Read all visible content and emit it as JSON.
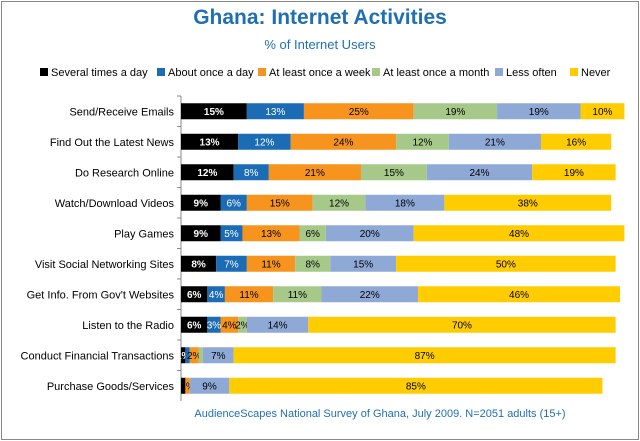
{
  "chart_data": {
    "type": "bar",
    "orientation": "horizontal",
    "stacked": true,
    "title": "Ghana: Internet Activities",
    "subtitle": "% of Internet Users",
    "footnote": "AudienceScapes National Survey of Ghana, July 2009. N=2051 adults (15+)",
    "legend_position": "top",
    "categories": [
      "Send/Receive Emails",
      "Find Out the Latest News",
      "Do Research Online",
      "Watch/Download Videos",
      "Play Games",
      "Visit Social Networking Sites",
      "Get Info. From Gov't Websites",
      "Listen to the Radio",
      "Conduct Financial Transactions",
      "Purchase Goods/Services"
    ],
    "series": [
      {
        "name": "Several times a day",
        "color": "#000000",
        "label_color": "#ffffff",
        "values": [
          15,
          13,
          12,
          9,
          9,
          8,
          6,
          6,
          1,
          1
        ]
      },
      {
        "name": "About once a day",
        "color": "#1b6cb4",
        "label_color": "#ffffff",
        "values": [
          13,
          12,
          8,
          6,
          5,
          7,
          4,
          3,
          1,
          0
        ]
      },
      {
        "name": "At least once a week",
        "color": "#f7941d",
        "label_color": "#000000",
        "values": [
          25,
          24,
          21,
          15,
          13,
          11,
          11,
          4,
          2,
          1
        ]
      },
      {
        "name": "At least once a month",
        "color": "#a6c98a",
        "label_color": "#000000",
        "values": [
          19,
          12,
          15,
          12,
          6,
          8,
          11,
          2,
          1,
          0
        ]
      },
      {
        "name": "Less often",
        "color": "#8fa9d6",
        "label_color": "#000000",
        "values": [
          19,
          21,
          24,
          18,
          20,
          15,
          22,
          14,
          7,
          9
        ]
      },
      {
        "name": "Never",
        "color": "#ffcc00",
        "label_color": "#000000",
        "values": [
          10,
          16,
          19,
          38,
          48,
          50,
          46,
          70,
          87,
          85
        ]
      }
    ],
    "data_labels": [
      [
        "15%",
        "13%",
        "25%",
        "19%",
        "19%",
        "10%"
      ],
      [
        "13%",
        "12%",
        "24%",
        "12%",
        "21%",
        "16%"
      ],
      [
        "12%",
        "8%",
        "21%",
        "15%",
        "24%",
        "19%"
      ],
      [
        "9%",
        "6%",
        "15%",
        "12%",
        "18%",
        "38%"
      ],
      [
        "9%",
        "5%",
        "13%",
        "6%",
        "20%",
        "48%"
      ],
      [
        "8%",
        "7%",
        "11%",
        "8%",
        "15%",
        "50%"
      ],
      [
        "6%",
        "4%",
        "11%",
        "11%",
        "22%",
        "46%"
      ],
      [
        "6%",
        "3%",
        "4%",
        "2%",
        "14%",
        "70%"
      ],
      [
        "1%",
        "",
        "2%",
        "",
        "7%",
        "87%"
      ],
      [
        "",
        "",
        "1%",
        "",
        "9%",
        "85%"
      ]
    ],
    "xlim": [
      0,
      100
    ],
    "grid": false
  }
}
